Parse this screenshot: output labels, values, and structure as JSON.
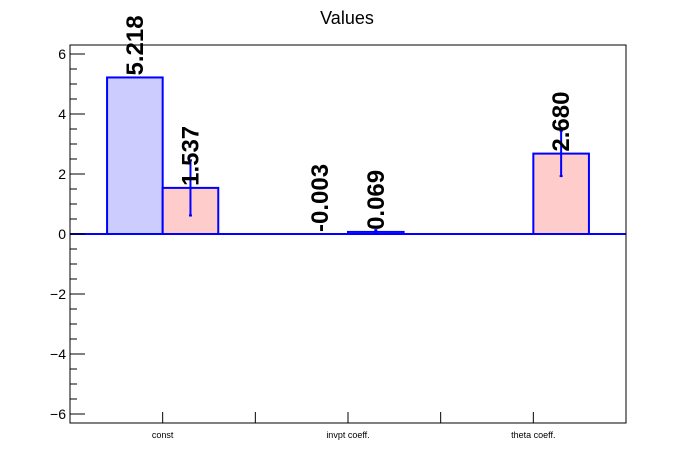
{
  "chart_data": {
    "type": "bar",
    "title": "Values",
    "categories": [
      "const",
      "invpt coeff.",
      "theta coeff."
    ],
    "ylim": [
      -6.3,
      6.3
    ],
    "yticks": [
      -6,
      -4,
      -2,
      0,
      2,
      4,
      6
    ],
    "grid": false,
    "series": [
      {
        "fill": "#ccccff",
        "stroke": "#0000ff",
        "values": [
          5.218,
          -0.003,
          null
        ],
        "errors": [
          null,
          null,
          null
        ],
        "labels": [
          "5.218",
          "-0.003",
          null
        ]
      },
      {
        "fill": "#ffcccc",
        "stroke": "#0000ff",
        "values": [
          1.537,
          0.069,
          2.68
        ],
        "errors": [
          0.92,
          0.06,
          0.75
        ],
        "labels": [
          "1.537",
          "0.069",
          "2.680"
        ]
      }
    ]
  }
}
